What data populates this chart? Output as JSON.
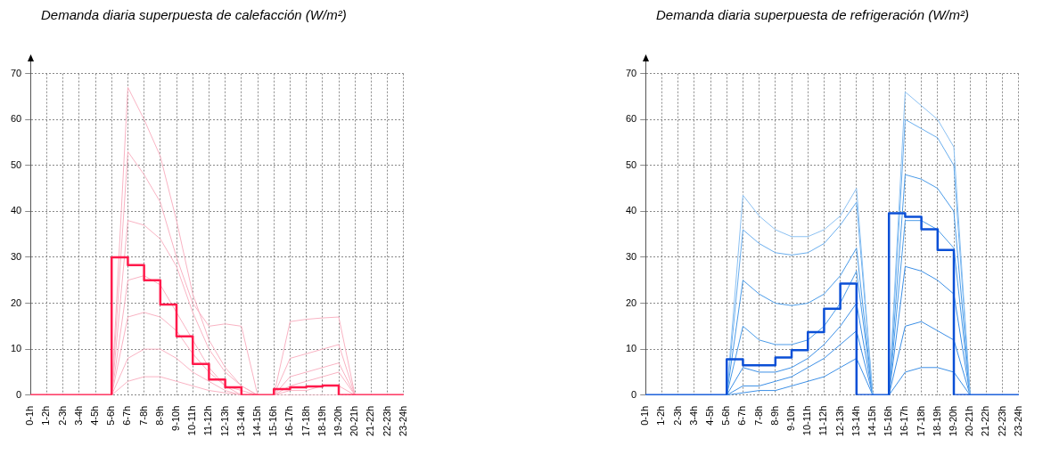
{
  "chart_data": [
    {
      "type": "line",
      "title": "Demanda diaria superpuesta de calefacción (W/m²)",
      "categories": [
        "0-1h",
        "1-2h",
        "2-3h",
        "3-4h",
        "4-5h",
        "5-6h",
        "6-7h",
        "7-8h",
        "8-9h",
        "9-10h",
        "10-11h",
        "11-12h",
        "12-13h",
        "13-14h",
        "14-15h",
        "15-16h",
        "16-17h",
        "17-18h",
        "18-19h",
        "19-20h",
        "20-21h",
        "21-22h",
        "22-23h",
        "23-24h"
      ],
      "ylim": [
        0,
        70
      ],
      "yticks": [
        0,
        10,
        20,
        30,
        40,
        50,
        60,
        70
      ],
      "grid": true,
      "legend": false,
      "marker": "none",
      "series": [
        {
          "type": "line",
          "color": "#f9b3c3",
          "values": [
            0,
            0,
            0,
            0,
            0,
            0,
            67,
            60,
            52,
            38,
            22,
            12,
            6,
            2,
            0,
            0,
            0,
            0,
            0,
            0,
            0,
            0,
            0,
            0
          ]
        },
        {
          "type": "line",
          "color": "#f9b3c3",
          "values": [
            0,
            0,
            0,
            0,
            0,
            0,
            53,
            48,
            42,
            30,
            20,
            15,
            15.5,
            15,
            0,
            0,
            16,
            16.5,
            16.8,
            17,
            0,
            0,
            0,
            0
          ]
        },
        {
          "type": "line",
          "color": "#f9b3c3",
          "values": [
            0,
            0,
            0,
            0,
            0,
            0,
            38,
            37,
            34,
            28,
            18,
            10,
            5,
            2,
            0,
            0,
            8,
            9,
            10,
            11,
            0,
            0,
            0,
            0
          ]
        },
        {
          "type": "line",
          "color": "#f9b3c3",
          "values": [
            0,
            0,
            0,
            0,
            0,
            0,
            25,
            26,
            24,
            18,
            12,
            6,
            2,
            0,
            0,
            0,
            4,
            5,
            6,
            7,
            0,
            0,
            0,
            0
          ]
        },
        {
          "type": "line",
          "color": "#f9b3c3",
          "values": [
            0,
            0,
            0,
            0,
            0,
            0,
            17,
            18,
            17,
            14,
            9,
            5,
            2,
            1,
            0,
            0,
            2,
            3,
            4,
            5,
            0,
            0,
            0,
            0
          ]
        },
        {
          "type": "line",
          "color": "#f9b3c3",
          "values": [
            0,
            0,
            0,
            0,
            0,
            0,
            8,
            10,
            10,
            8,
            5,
            3,
            1,
            0,
            0,
            0,
            1,
            1,
            2,
            2,
            0,
            0,
            0,
            0
          ]
        },
        {
          "type": "line",
          "color": "#f9b3c3",
          "values": [
            0,
            0,
            0,
            0,
            0,
            0,
            3,
            4,
            4,
            3,
            2,
            1,
            0.5,
            0,
            null,
            null,
            null,
            null,
            null,
            null,
            null,
            null,
            null,
            null
          ]
        },
        {
          "type": "step",
          "color": "#ff1a4b",
          "values": [
            0,
            0,
            0,
            0,
            0,
            0,
            30,
            28.3,
            25,
            19.7,
            12.8,
            6.8,
            3.4,
            1.7,
            0,
            0,
            1.3,
            1.7,
            1.9,
            2.1,
            0,
            0,
            0,
            0
          ]
        }
      ]
    },
    {
      "type": "line",
      "title": "Demanda diaria superpuesta de refrigeración (W/m²)",
      "categories": [
        "0-1h",
        "1-2h",
        "2-3h",
        "3-4h",
        "4-5h",
        "5-6h",
        "6-7h",
        "7-8h",
        "8-9h",
        "9-10h",
        "10-11h",
        "11-12h",
        "12-13h",
        "13-14h",
        "14-15h",
        "15-16h",
        "16-17h",
        "17-18h",
        "18-19h",
        "19-20h",
        "20-21h",
        "21-22h",
        "22-23h",
        "23-24h"
      ],
      "ylim": [
        0,
        70
      ],
      "yticks": [
        0,
        10,
        20,
        30,
        40,
        50,
        60,
        70
      ],
      "grid": true,
      "legend": false,
      "marker": "none",
      "series": [
        {
          "type": "line",
          "color": "#8cc1f2",
          "values": [
            0,
            0,
            0,
            0,
            0,
            0,
            43.5,
            39,
            36,
            34.5,
            34.5,
            36,
            39,
            45,
            0,
            0,
            66,
            63,
            60,
            54,
            0,
            0,
            0,
            0
          ]
        },
        {
          "type": "line",
          "color": "#6aaeee",
          "values": [
            0,
            0,
            0,
            0,
            0,
            0,
            36,
            33,
            31,
            30.5,
            31,
            33,
            37,
            42,
            0,
            0,
            60,
            58,
            56,
            50,
            0,
            0,
            0,
            0
          ]
        },
        {
          "type": "line",
          "color": "#4a9be8",
          "values": [
            0,
            0,
            0,
            0,
            0,
            0,
            25,
            22,
            20,
            19.5,
            20,
            22,
            26,
            32,
            0,
            0,
            48,
            47,
            45,
            40,
            0,
            0,
            0,
            0
          ]
        },
        {
          "type": "line",
          "color": "#4a9be8",
          "values": [
            0,
            0,
            0,
            0,
            0,
            0,
            15,
            12,
            11,
            11,
            12,
            15,
            20,
            27,
            0,
            0,
            38,
            38,
            36,
            32,
            0,
            0,
            0,
            0
          ]
        },
        {
          "type": "line",
          "color": "#3c8fe6",
          "values": [
            0,
            0,
            0,
            0,
            0,
            0,
            6,
            5,
            5,
            6,
            8,
            11,
            15,
            20,
            0,
            0,
            28,
            27,
            25,
            22,
            0,
            0,
            0,
            0
          ]
        },
        {
          "type": "line",
          "color": "#3c8fe6",
          "values": [
            0,
            0,
            0,
            0,
            0,
            0,
            2,
            2,
            3,
            4,
            6,
            8,
            11,
            14,
            0,
            0,
            15,
            16,
            14,
            12,
            0,
            0,
            0,
            0
          ]
        },
        {
          "type": "line",
          "color": "#3c8fe6",
          "values": [
            0,
            0,
            0,
            0,
            0,
            0,
            0.5,
            1,
            1,
            2,
            3,
            4,
            6,
            8,
            0,
            0,
            5,
            6,
            6,
            5,
            0,
            0,
            0,
            0
          ]
        },
        {
          "type": "step",
          "color": "#0a4fd6",
          "values": [
            0,
            0,
            0,
            0,
            0,
            0,
            7.8,
            6.5,
            6.5,
            8.2,
            9.8,
            13.7,
            18.8,
            24.3,
            0,
            0,
            39.6,
            38.8,
            36.1,
            31.6,
            0,
            0,
            0,
            0
          ]
        }
      ]
    }
  ]
}
